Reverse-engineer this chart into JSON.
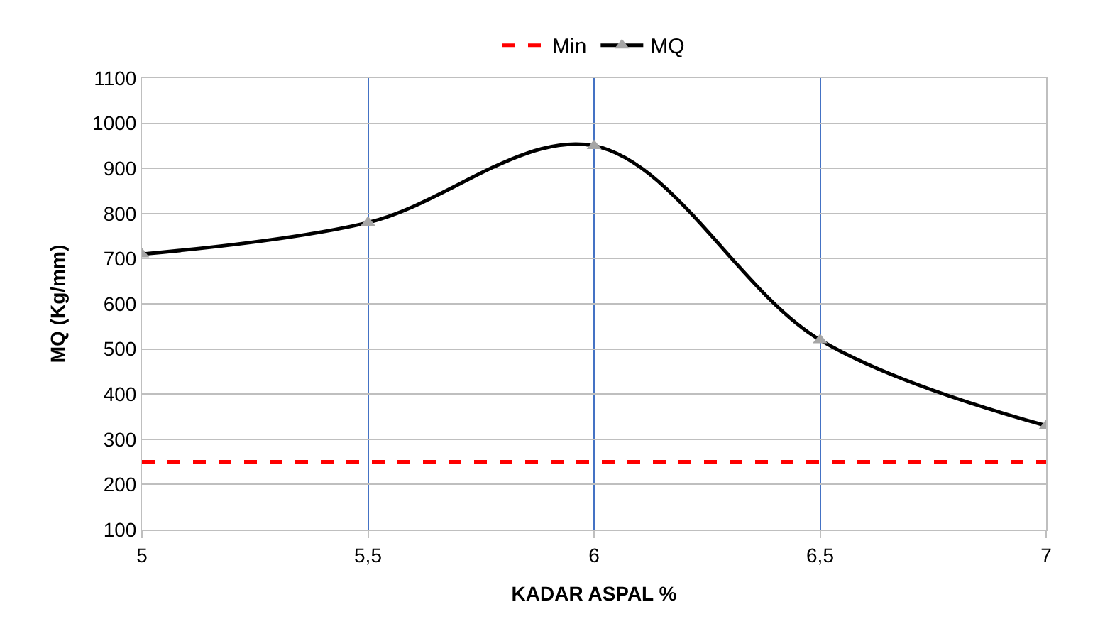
{
  "chart_data": {
    "type": "line",
    "xlabel": "KADAR ASPAL %",
    "ylabel": "MQ (Kg/mm)",
    "x": [
      5,
      5.5,
      6,
      6.5,
      7
    ],
    "series": [
      {
        "name": "Min",
        "color": "#ff0000",
        "x": [
          5,
          7
        ],
        "values": [
          250,
          250
        ],
        "line_style": "dashed",
        "marker": "none"
      },
      {
        "name": "MQ",
        "color": "#000000",
        "values": [
          710,
          780,
          950,
          520,
          330
        ],
        "line_style": "solid",
        "marker": "triangle"
      }
    ],
    "xlim": [
      5,
      7
    ],
    "xticks": [
      5,
      {
        "value": 5.5,
        "label": "5,5"
      },
      6,
      {
        "value": 6.5,
        "label": "6,5"
      },
      7
    ],
    "ylim": [
      100,
      1100
    ],
    "yticks": [
      100,
      200,
      300,
      400,
      500,
      600,
      700,
      800,
      900,
      1000,
      1100
    ],
    "grid": true,
    "legend": "top"
  }
}
